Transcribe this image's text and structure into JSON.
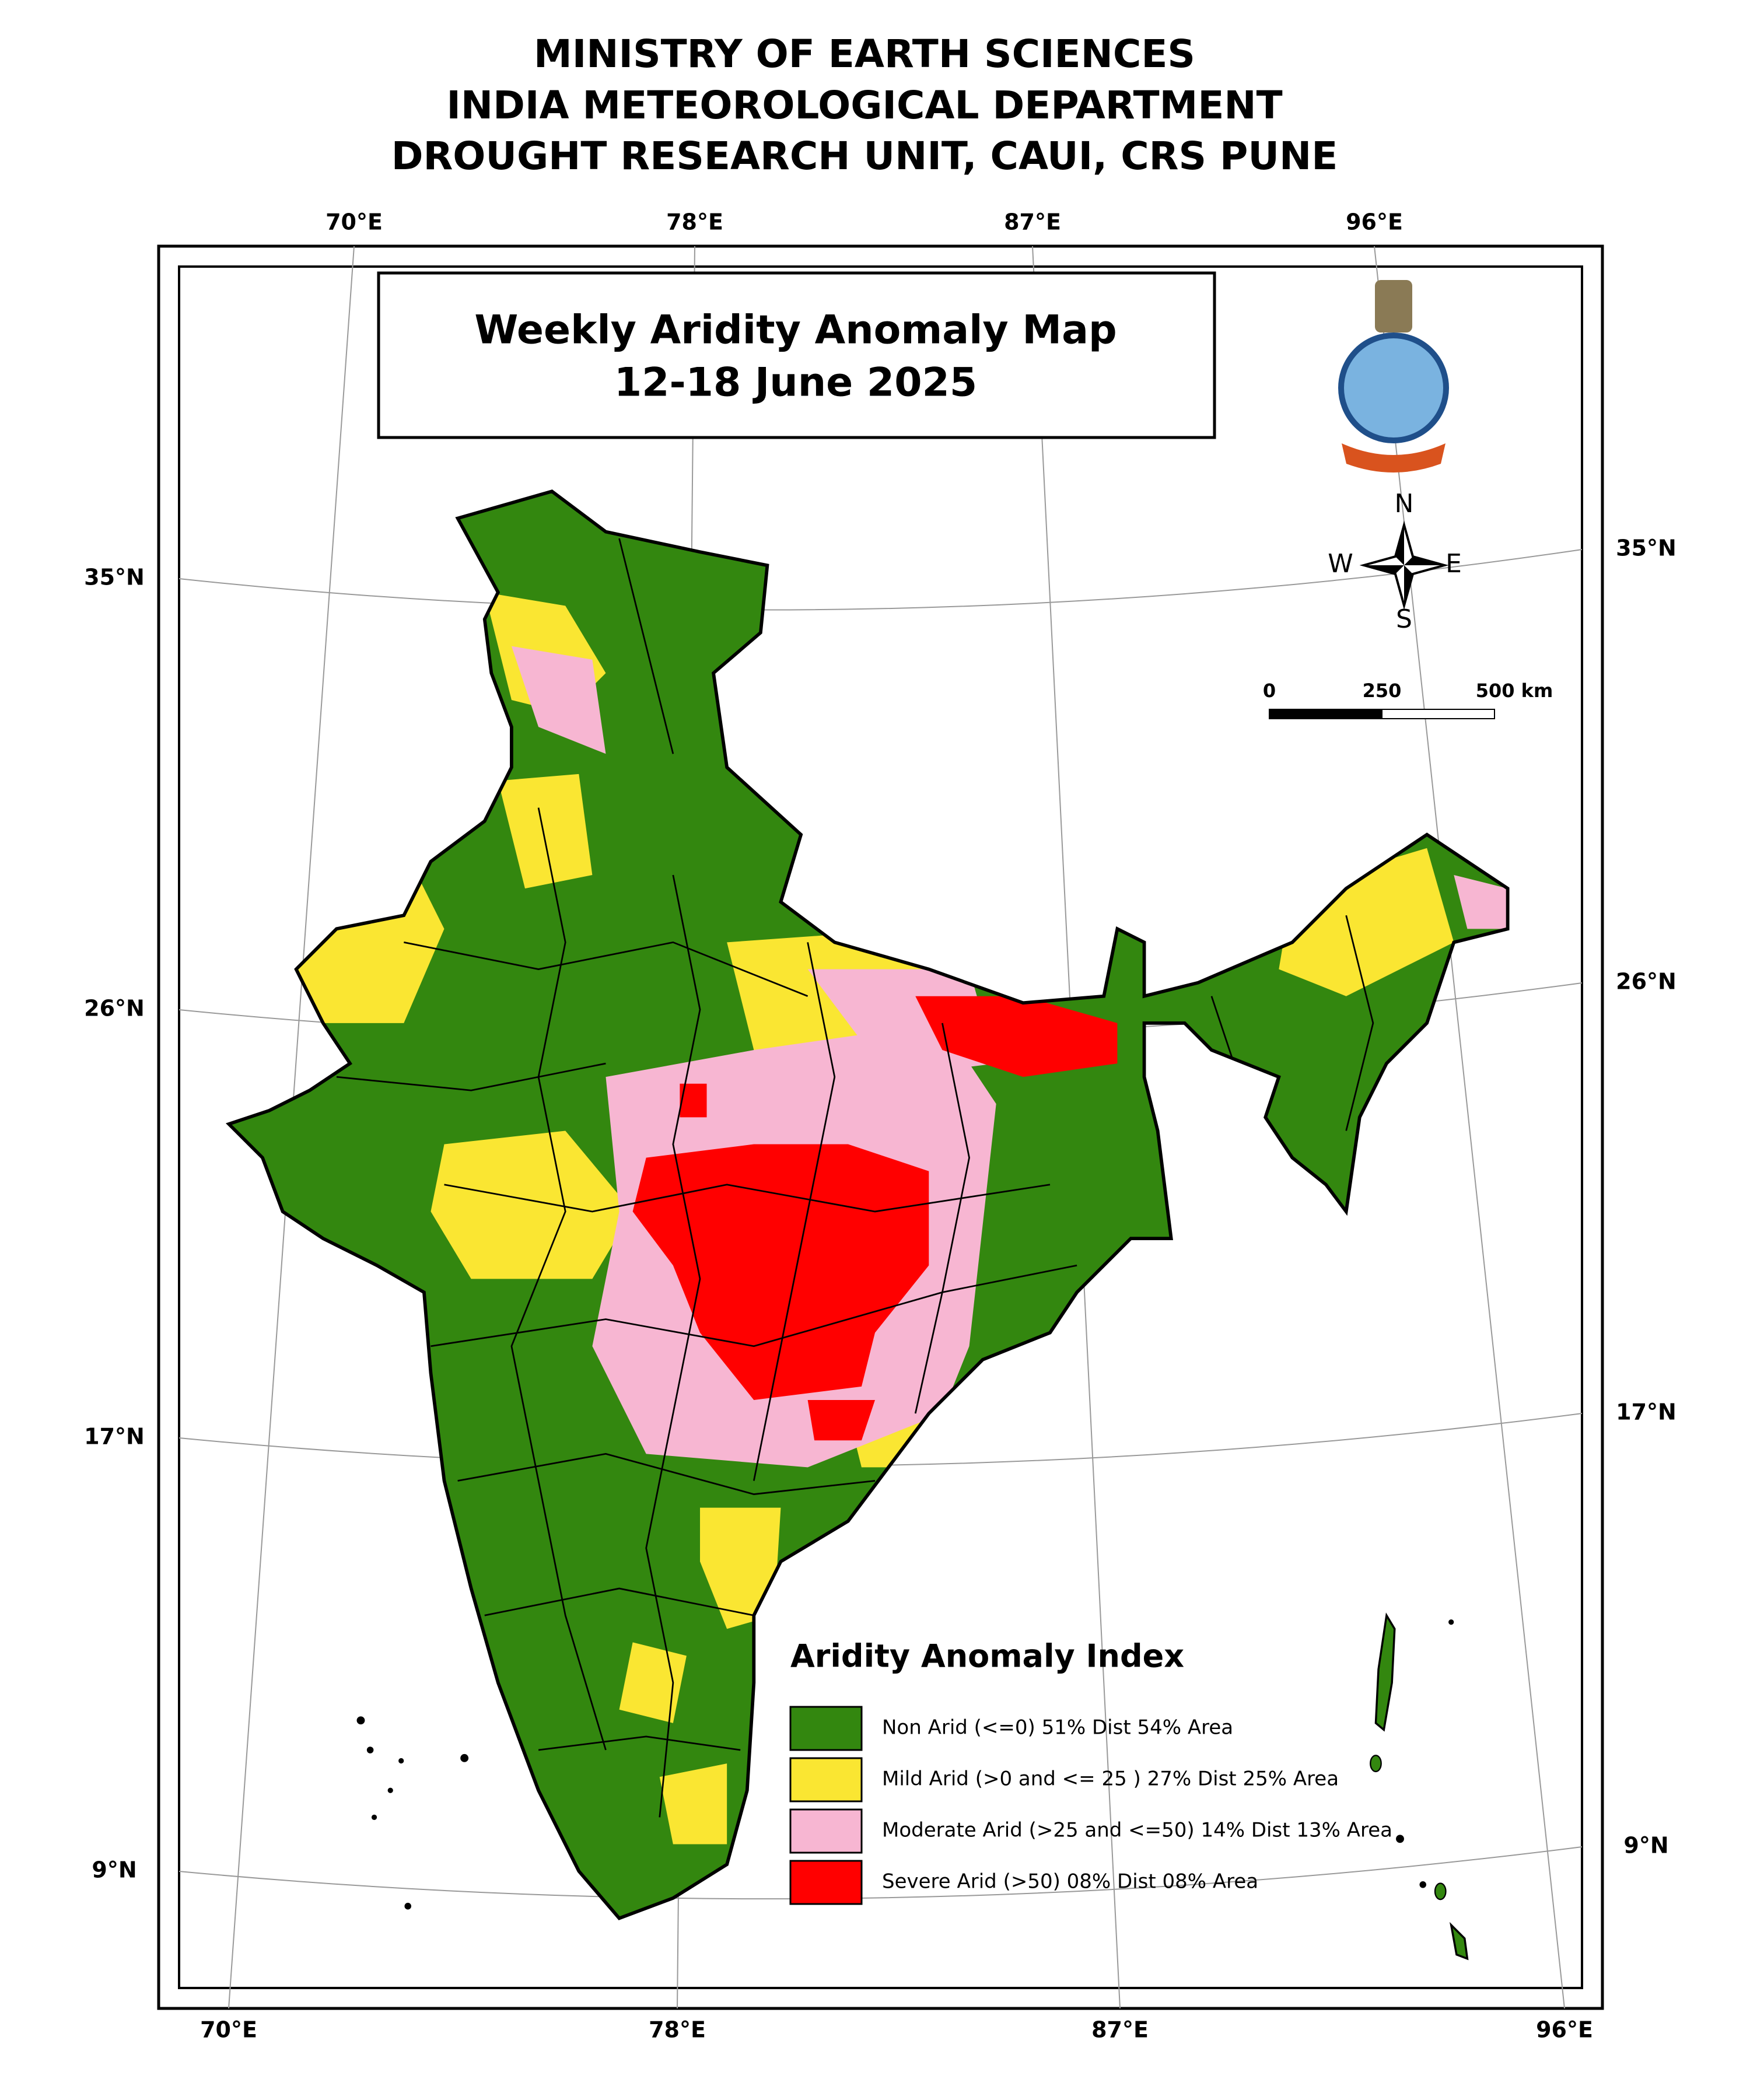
{
  "header": {
    "lines": [
      "MINISTRY OF EARTH SCIENCES",
      "INDIA METEOROLOGICAL DEPARTMENT",
      "DROUGHT RESEARCH UNIT, CAUI, CRS PUNE"
    ]
  },
  "map_title": {
    "lines": [
      "Weekly Aridity Anomaly Map",
      "12-18  June  2025"
    ]
  },
  "graticule": {
    "top": [
      "70°E",
      "78°E",
      "87°E",
      "96°E"
    ],
    "bottom": [
      "70°E",
      "78°E",
      "87°E",
      "96°E"
    ],
    "left": [
      "35°N",
      "26°N",
      "17°N",
      "9°N"
    ],
    "right": [
      "35°N",
      "26°N",
      "17°N",
      "9°N"
    ]
  },
  "compass": {
    "n": "N",
    "s": "S",
    "e": "E",
    "w": "W"
  },
  "scale_bar": {
    "labels": [
      "0",
      "250",
      "500 km"
    ]
  },
  "legend": {
    "title": "Aridity Anomaly Index",
    "items": [
      {
        "label": "Non Arid (<=0) 51% Dist 54% Area",
        "color": "#33870f"
      },
      {
        "label": "Mild Arid (>0 and <= 25 ) 27% Dist  25% Area",
        "color": "#fae632"
      },
      {
        "label": "Moderate Arid (>25 and <=50) 14% Dist  13% Area",
        "color": "#f7b6d2"
      },
      {
        "label": "Severe Arid (>50) 08% Dist  08% Area",
        "color": "#ff0000"
      }
    ]
  }
}
